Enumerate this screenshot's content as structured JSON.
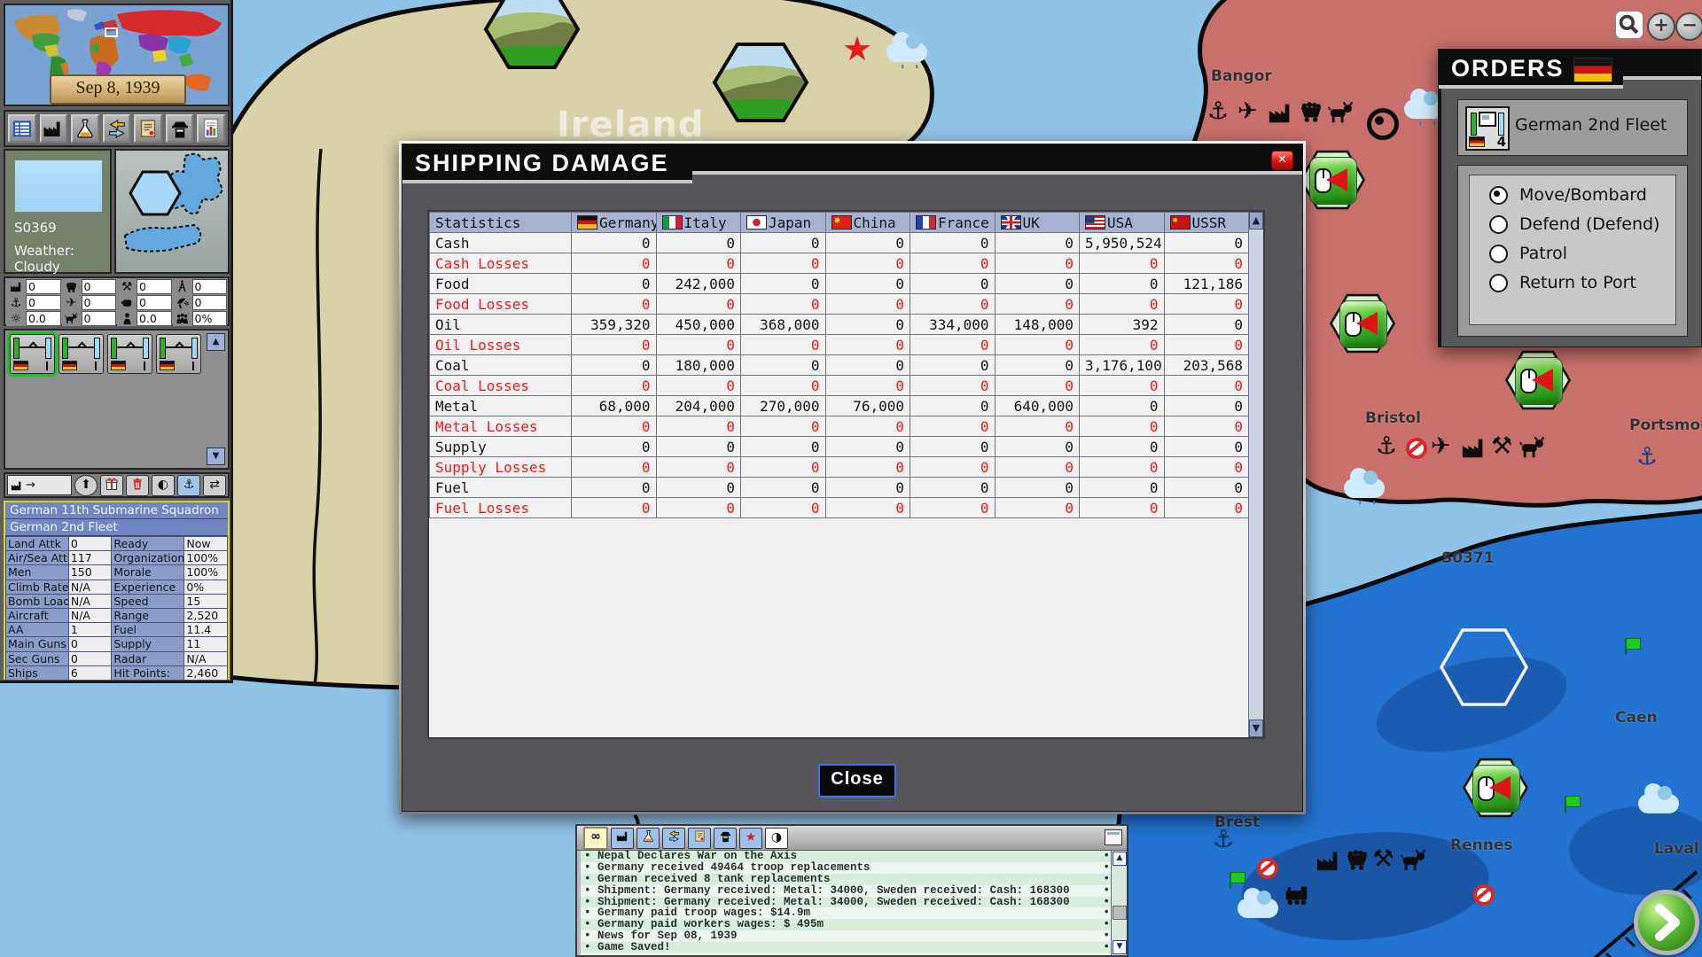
{
  "window": {
    "zoom_in": "+",
    "zoom_out": "−"
  },
  "map": {
    "region_label": "Ireland",
    "towns": [
      "Bangor",
      "Bristol",
      "Portsmouth",
      "S0371",
      "Caen",
      "Brest",
      "Rennes",
      "Laval"
    ]
  },
  "minimap": {
    "date": "Sep 8, 1939"
  },
  "sidebar": {
    "weather_id": "S0369",
    "weather": "Weather: Cloudy",
    "resources": [
      {
        "icon": "factory",
        "value": "0"
      },
      {
        "icon": "minecart",
        "value": "0"
      },
      {
        "icon": "pickaxes",
        "value": "0"
      },
      {
        "icon": "derrick",
        "value": "0"
      },
      {
        "icon": "anchor",
        "value": "0"
      },
      {
        "icon": "plane",
        "value": "0"
      },
      {
        "icon": "hand",
        "value": "0"
      },
      {
        "icon": "radar",
        "value": "0"
      },
      {
        "icon": "sun",
        "value": "0.0"
      },
      {
        "icon": "cow",
        "value": "0"
      },
      {
        "icon": "person",
        "value": "0.0"
      },
      {
        "icon": "crowd",
        "value": "0%"
      }
    ],
    "unit": {
      "line1": "German 11th Submarine Squadron",
      "line2": "German 2nd Fleet",
      "stats_left": [
        {
          "k": "Land Attk",
          "v": "0"
        },
        {
          "k": "Air/Sea Attk",
          "v": "117"
        },
        {
          "k": "Men",
          "v": "150"
        },
        {
          "k": "Climb Rate",
          "v": "N/A"
        },
        {
          "k": "Bomb Load",
          "v": "N/A"
        },
        {
          "k": "Aircraft",
          "v": "N/A"
        },
        {
          "k": "AA",
          "v": "1"
        },
        {
          "k": "Main Guns",
          "v": "0"
        },
        {
          "k": "Sec Guns",
          "v": "0"
        },
        {
          "k": "Ships",
          "v": "6"
        }
      ],
      "stats_right": [
        {
          "k": "Ready",
          "v": "Now"
        },
        {
          "k": "Organization",
          "v": "100%"
        },
        {
          "k": "Morale",
          "v": "100%"
        },
        {
          "k": "Experience",
          "v": "0%"
        },
        {
          "k": "Speed",
          "v": "15"
        },
        {
          "k": "Range",
          "v": "2,520"
        },
        {
          "k": "Fuel",
          "v": "11.4"
        },
        {
          "k": "Supply",
          "v": "11"
        },
        {
          "k": "Radar",
          "v": "N/A"
        },
        {
          "k": "Hit Points:",
          "v": "2,460"
        }
      ]
    }
  },
  "dialog": {
    "title": "SHIPPING DAMAGE",
    "close_button": "Close",
    "table": {
      "columns": [
        {
          "label": "Statistics",
          "flag": ""
        },
        {
          "label": "Germany",
          "flag": "germany"
        },
        {
          "label": "Italy",
          "flag": "italy"
        },
        {
          "label": "Japan",
          "flag": "japan"
        },
        {
          "label": "China",
          "flag": "china"
        },
        {
          "label": "France",
          "flag": "france"
        },
        {
          "label": "UK",
          "flag": "uk"
        },
        {
          "label": "USA",
          "flag": "usa"
        },
        {
          "label": "USSR",
          "flag": "ussr"
        }
      ],
      "rows": [
        {
          "label": "Cash",
          "loss": false,
          "values": [
            "0",
            "0",
            "0",
            "0",
            "0",
            "0",
            "5,950,524",
            "0"
          ]
        },
        {
          "label": "Cash Losses",
          "loss": true,
          "values": [
            "0",
            "0",
            "0",
            "0",
            "0",
            "0",
            "0",
            "0"
          ]
        },
        {
          "label": "Food",
          "loss": false,
          "values": [
            "0",
            "242,000",
            "0",
            "0",
            "0",
            "0",
            "0",
            "121,186"
          ]
        },
        {
          "label": "Food Losses",
          "loss": true,
          "values": [
            "0",
            "0",
            "0",
            "0",
            "0",
            "0",
            "0",
            "0"
          ]
        },
        {
          "label": "Oil",
          "loss": false,
          "values": [
            "359,320",
            "450,000",
            "368,000",
            "0",
            "334,000",
            "148,000",
            "392",
            "0"
          ]
        },
        {
          "label": "Oil Losses",
          "loss": true,
          "values": [
            "0",
            "0",
            "0",
            "0",
            "0",
            "0",
            "0",
            "0"
          ]
        },
        {
          "label": "Coal",
          "loss": false,
          "values": [
            "0",
            "180,000",
            "0",
            "0",
            "0",
            "0",
            "3,176,100",
            "203,568"
          ]
        },
        {
          "label": "Coal Losses",
          "loss": true,
          "values": [
            "0",
            "0",
            "0",
            "0",
            "0",
            "0",
            "0",
            "0"
          ]
        },
        {
          "label": "Metal",
          "loss": false,
          "values": [
            "68,000",
            "204,000",
            "270,000",
            "76,000",
            "0",
            "640,000",
            "0",
            "0"
          ]
        },
        {
          "label": "Metal Losses",
          "loss": true,
          "values": [
            "0",
            "0",
            "0",
            "0",
            "0",
            "0",
            "0",
            "0"
          ]
        },
        {
          "label": "Supply",
          "loss": false,
          "values": [
            "0",
            "0",
            "0",
            "0",
            "0",
            "0",
            "0",
            "0"
          ]
        },
        {
          "label": "Supply Losses",
          "loss": true,
          "values": [
            "0",
            "0",
            "0",
            "0",
            "0",
            "0",
            "0",
            "0"
          ]
        },
        {
          "label": "Fuel",
          "loss": false,
          "values": [
            "0",
            "0",
            "0",
            "0",
            "0",
            "0",
            "0",
            "0"
          ]
        },
        {
          "label": "Fuel Losses",
          "loss": true,
          "values": [
            "0",
            "0",
            "0",
            "0",
            "0",
            "0",
            "0",
            "0"
          ]
        }
      ]
    }
  },
  "orders": {
    "title": "ORDERS",
    "unit_name": "German 2nd Fleet",
    "unit_icon_count": "4",
    "options": [
      {
        "label": "Move/Bombard",
        "selected": true
      },
      {
        "label": "Defend (Defend)",
        "selected": false
      },
      {
        "label": "Patrol",
        "selected": false
      },
      {
        "label": "Return to Port",
        "selected": false
      }
    ]
  },
  "log": {
    "messages": [
      "Nepal Declares War on the Axis",
      "Germany received 49464 troop replacements",
      "German received 8 tank replacements",
      "Shipment: Germany received: Metal: 34000, Sweden received: Cash: 168300",
      "Shipment: Germany received: Metal: 34000, Sweden received: Cash: 168300",
      "Germany paid troop wages: $14.9m",
      "Germany paid workers wages: $ 495m",
      "News for Sep 08, 1939",
      "Game Saved!"
    ]
  }
}
